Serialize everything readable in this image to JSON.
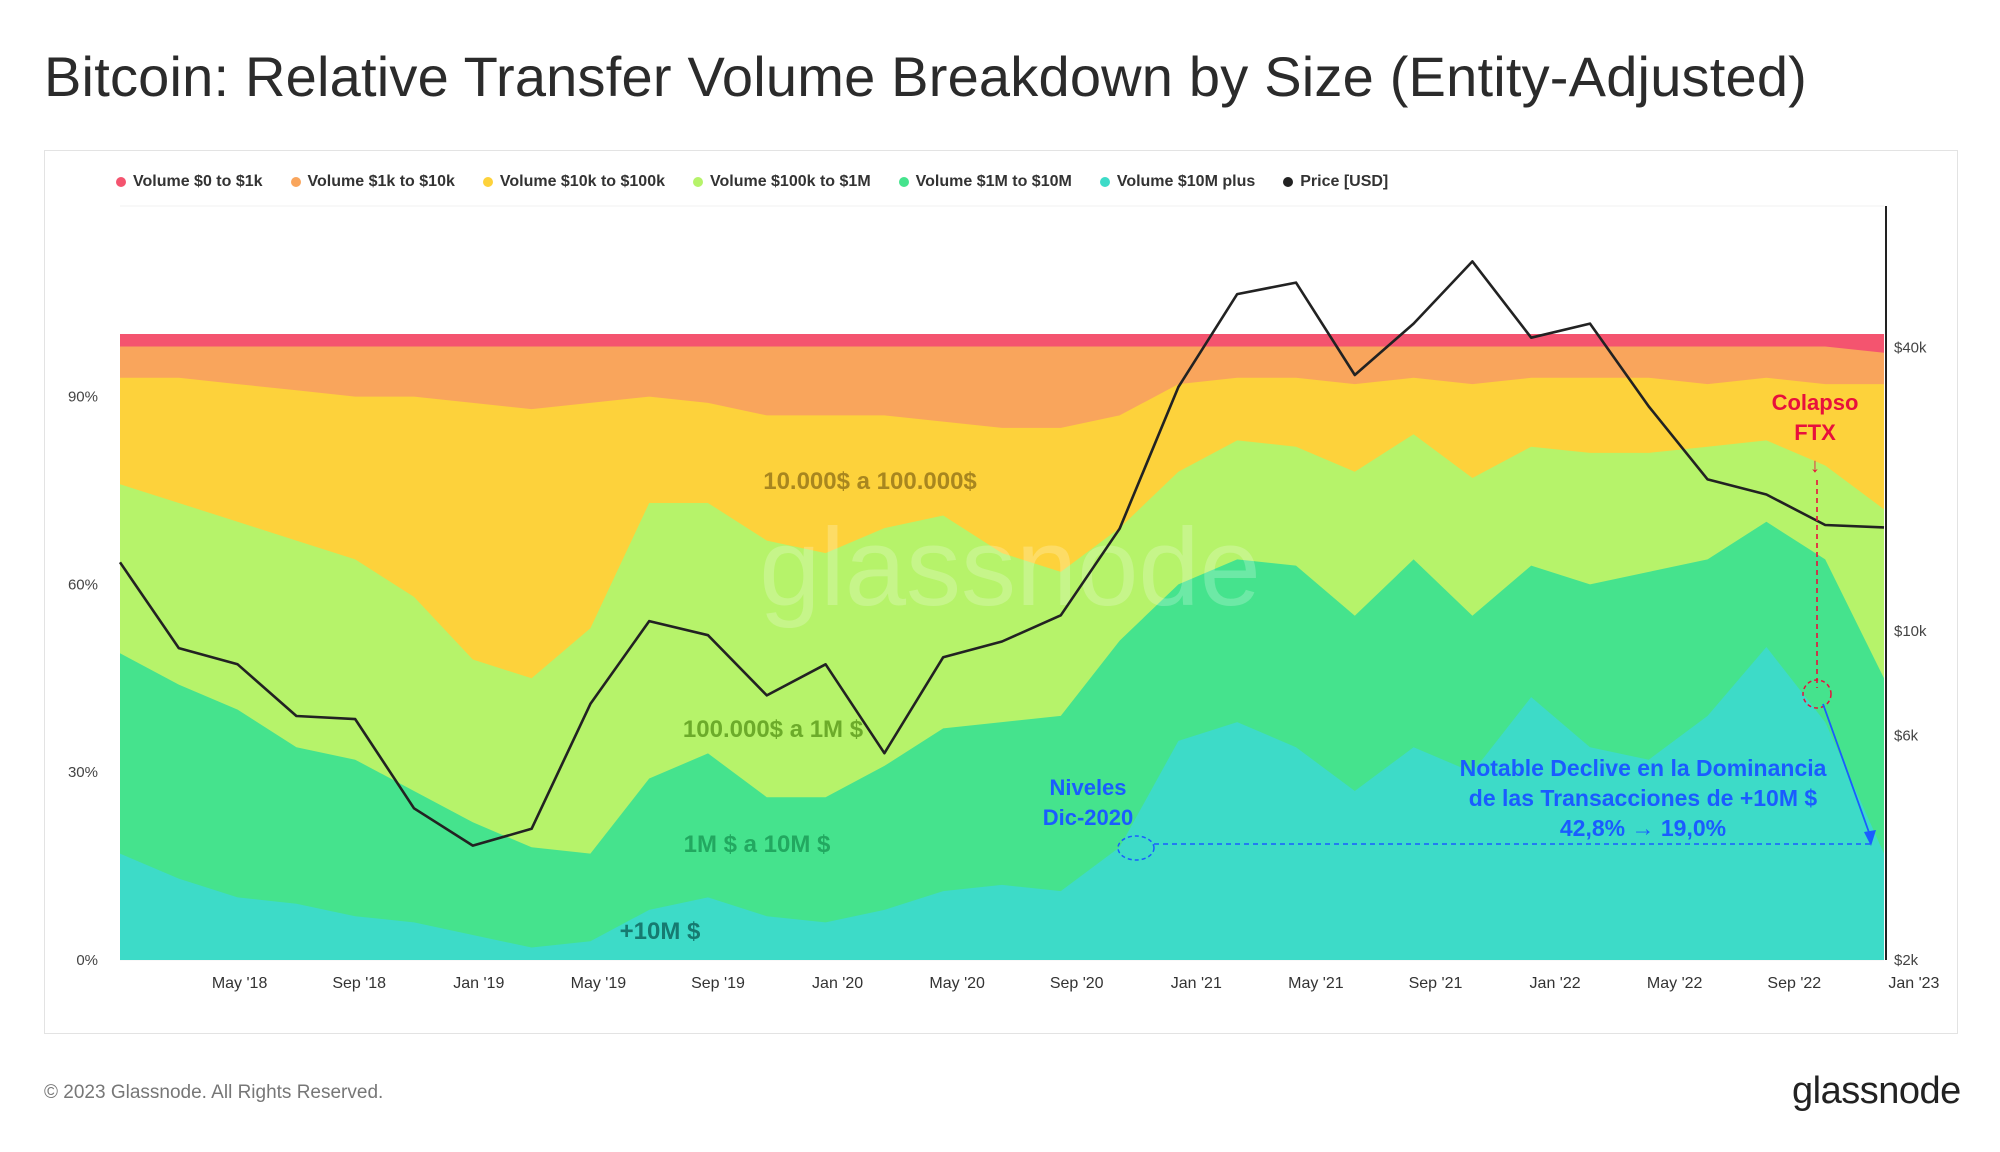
{
  "header": {
    "title": "Bitcoin: Relative Transfer Volume Breakdown by Size (Entity-Adjusted)"
  },
  "footer": {
    "copyright": "© 2023 Glassnode. All Rights Reserved.",
    "brand": "glassnode"
  },
  "watermark": "glassnode",
  "colors": {
    "v0_1k": "#f4546f",
    "v1k_10k": "#f9a55c",
    "v10k_100k": "#fdd23b",
    "v100k_1m": "#b6f36a",
    "v1m_10m": "#45e38d",
    "v10m_plus": "#3ddbc8",
    "price": "#222222",
    "annotation_red": "#e8103c",
    "annotation_blue": "#1a5cff"
  },
  "chart_data": {
    "type": "area",
    "stacked": true,
    "legend": [
      {
        "name": "Volume $0 to $1k",
        "color": "#f4546f"
      },
      {
        "name": "Volume $1k to $10k",
        "color": "#f9a55c"
      },
      {
        "name": "Volume $10k to $100k",
        "color": "#fdd23b"
      },
      {
        "name": "Volume $100k to $1M",
        "color": "#b6f36a"
      },
      {
        "name": "Volume $1M to $10M",
        "color": "#45e38d"
      },
      {
        "name": "Volume $10M plus",
        "color": "#3ddbc8"
      },
      {
        "name": "Price [USD]",
        "color": "#222222"
      }
    ],
    "legend_position": "top-left",
    "x": [
      "2018-01",
      "2018-03",
      "2018-05",
      "2018-07",
      "2018-09",
      "2018-11",
      "2019-01",
      "2019-03",
      "2019-05",
      "2019-07",
      "2019-09",
      "2019-11",
      "2020-01",
      "2020-03",
      "2020-05",
      "2020-07",
      "2020-09",
      "2020-11",
      "2021-01",
      "2021-03",
      "2021-05",
      "2021-07",
      "2021-09",
      "2021-11",
      "2022-01",
      "2022-03",
      "2022-05",
      "2022-07",
      "2022-09",
      "2022-11",
      "2022-12"
    ],
    "x_ticks": [
      "May '18",
      "Sep '18",
      "Jan '19",
      "May '19",
      "Sep '19",
      "Jan '20",
      "May '20",
      "Sep '20",
      "Jan '21",
      "May '21",
      "Sep '21",
      "Jan '22",
      "May '22",
      "Sep '22",
      "Jan '23"
    ],
    "y_left_ticks": [
      "0%",
      "30%",
      "60%",
      "90%"
    ],
    "y_left_range": [
      0,
      100
    ],
    "y_right_ticks": [
      "$2k",
      "$6k",
      "$10k",
      "$40k"
    ],
    "y_right_scale": "log",
    "y_right_range": [
      2000,
      80000
    ],
    "series": [
      {
        "name": "Volume $10M plus",
        "cumulative_top": [
          17,
          13,
          10,
          9,
          7,
          6,
          4,
          2,
          3,
          8,
          10,
          7,
          6,
          8,
          11,
          12,
          11,
          18,
          35,
          38,
          34,
          27,
          34,
          30,
          42,
          34,
          32,
          39,
          50,
          38,
          17
        ]
      },
      {
        "name": "Volume $1M to $10M",
        "cumulative_top": [
          49,
          44,
          40,
          34,
          32,
          27,
          22,
          18,
          17,
          29,
          33,
          26,
          26,
          31,
          37,
          38,
          39,
          51,
          60,
          64,
          63,
          55,
          64,
          55,
          63,
          60,
          62,
          64,
          70,
          64,
          45
        ]
      },
      {
        "name": "Volume $100k to $1M",
        "cumulative_top": [
          76,
          73,
          70,
          67,
          64,
          58,
          48,
          45,
          53,
          73,
          73,
          67,
          65,
          69,
          71,
          65,
          62,
          69,
          78,
          83,
          82,
          78,
          84,
          77,
          82,
          81,
          81,
          82,
          83,
          79,
          72
        ]
      },
      {
        "name": "Volume $10k to $100k",
        "cumulative_top": [
          93,
          93,
          92,
          91,
          90,
          90,
          89,
          88,
          89,
          90,
          89,
          87,
          87,
          87,
          86,
          85,
          85,
          87,
          92,
          93,
          93,
          92,
          93,
          92,
          93,
          93,
          93,
          92,
          93,
          92,
          92
        ]
      },
      {
        "name": "Volume $1k to $10k",
        "cumulative_top": [
          98,
          98,
          98,
          98,
          98,
          98,
          98,
          98,
          98,
          98,
          98,
          98,
          98,
          98,
          98,
          98,
          98,
          98,
          98,
          98,
          98,
          98,
          98,
          98,
          98,
          98,
          98,
          98,
          98,
          98,
          97
        ]
      },
      {
        "name": "Volume $0 to $1k",
        "cumulative_top": [
          100,
          100,
          100,
          100,
          100,
          100,
          100,
          100,
          100,
          100,
          100,
          100,
          100,
          100,
          100,
          100,
          100,
          100,
          100,
          100,
          100,
          100,
          100,
          100,
          100,
          100,
          100,
          100,
          100,
          100,
          100
        ]
      }
    ],
    "price": [
      14000,
      9200,
      8500,
      6600,
      6500,
      4200,
      3500,
      3800,
      7000,
      10500,
      9800,
      7300,
      8500,
      5500,
      8800,
      9500,
      10800,
      16500,
      33000,
      52000,
      55000,
      35000,
      45000,
      61000,
      42000,
      45000,
      30000,
      21000,
      19500,
      16800,
      16600
    ]
  },
  "annotations": {
    "band_10k_100k": "10.000$ a 100.000$",
    "band_100k_1m": "100.000$ a 1M $",
    "band_1m_10m": "1M $ a 10M $",
    "band_10m_plus": "+10M $",
    "ftx_line1": "Colapso",
    "ftx_line2": "FTX",
    "ftx_arrow": "↓",
    "dec2020_line1": "Niveles",
    "dec2020_line2": "Dic-2020",
    "decline_line1": "Notable Declive en la Dominancia",
    "decline_line2": "de las Transacciones de +10M $",
    "decline_line3": "42,8% → 19,0%"
  }
}
